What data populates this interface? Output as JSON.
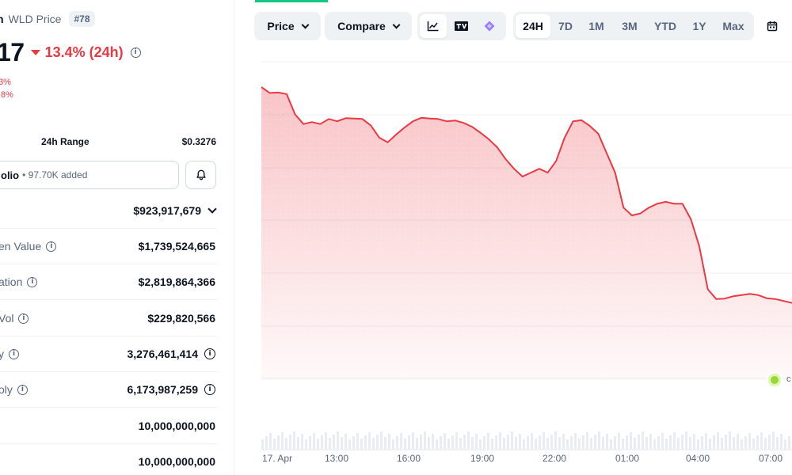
{
  "coin": {
    "name": "n",
    "symbol": "WLD Price",
    "rank": "#78",
    "price": "17",
    "change": "13.4% (24h)",
    "change_color": "#ea3943",
    "sub_red_1": "3%",
    "sub_red_2": ".8%"
  },
  "range": {
    "label": "24h Range",
    "value": "$0.3276"
  },
  "portfolio": {
    "label": "olio",
    "added": "• 97.70K added"
  },
  "stats": [
    {
      "label": "",
      "value": "$923,917,679",
      "has_info": false,
      "has_chevron": true,
      "value_info": false
    },
    {
      "label": "en Value",
      "value": "$1,739,524,665",
      "has_info": true,
      "value_info": false
    },
    {
      "label": "ation",
      "value": "$2,819,864,366",
      "has_info": true,
      "value_info": false
    },
    {
      "label": "Vol",
      "value": "$229,820,566",
      "has_info": true,
      "value_info": false
    },
    {
      "label": "y",
      "value": "3,276,461,414",
      "has_info": true,
      "value_info": true
    },
    {
      "label": "oly",
      "value": "6,173,987,259",
      "has_info": true,
      "value_info": true
    },
    {
      "label": "",
      "value": "10,000,000,000",
      "has_info": false,
      "value_info": false
    },
    {
      "label": "",
      "value": "10,000,000,000",
      "has_info": false,
      "value_info": false
    }
  ],
  "toolbar": {
    "price_label": "Price",
    "compare_label": "Compare",
    "chart_icons": [
      "line-chart-icon",
      "tradingview-icon",
      "diamond-icon"
    ],
    "periods": [
      "24H",
      "7D",
      "1M",
      "3M",
      "YTD",
      "1Y",
      "Max"
    ],
    "active_period": "24H",
    "tail_icons": [
      "calendar-icon",
      "link-icon"
    ]
  },
  "colors": {
    "accent_green": "#16c784",
    "line_red": "#ea3943",
    "text_dark": "#0d1421",
    "text_muted": "#58667e"
  },
  "chart_data": {
    "type": "area",
    "x_tick_labels": [
      "17. Apr",
      "13:00",
      "16:00",
      "19:00",
      "22:00",
      "01:00",
      "04:00",
      "07:00"
    ],
    "values": [
      1.0,
      0.985,
      0.986,
      0.982,
      0.93,
      0.905,
      0.91,
      0.905,
      0.918,
      0.912,
      0.92,
      0.919,
      0.918,
      0.901,
      0.87,
      0.858,
      0.878,
      0.896,
      0.912,
      0.921,
      0.919,
      0.918,
      0.912,
      0.914,
      0.908,
      0.898,
      0.883,
      0.866,
      0.845,
      0.815,
      0.79,
      0.77,
      0.78,
      0.79,
      0.78,
      0.81,
      0.87,
      0.912,
      0.915,
      0.9,
      0.88,
      0.83,
      0.78,
      0.69,
      0.67,
      0.675,
      0.69,
      0.7,
      0.705,
      0.7,
      0.7,
      0.66,
      0.59,
      0.48,
      0.455,
      0.456,
      0.462,
      0.465,
      0.468,
      0.465,
      0.457,
      0.455,
      0.45,
      0.445
    ],
    "grid": true,
    "legend": "none"
  }
}
